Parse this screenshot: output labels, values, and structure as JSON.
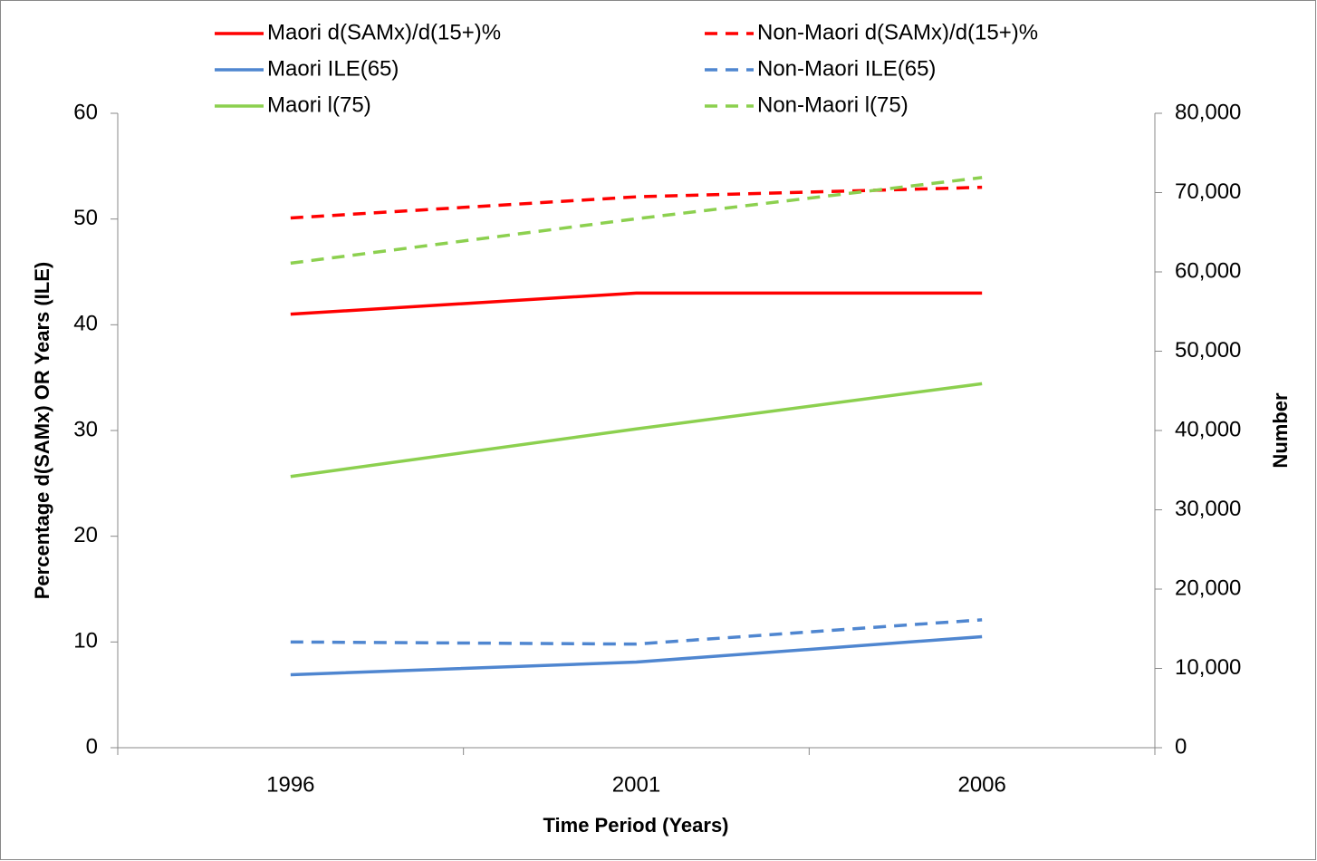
{
  "chart_data": {
    "type": "line",
    "x_label": "Time Period (Years)",
    "y_label": "Percentage d(SAMx) OR Years (ILE)",
    "y2_label": "Number",
    "categories": [
      "1996",
      "2001",
      "2006"
    ],
    "ylim": [
      0,
      60
    ],
    "yticks": [
      0,
      10,
      20,
      30,
      40,
      50,
      60
    ],
    "y2lim": [
      0,
      80000
    ],
    "y2ticks": [
      {
        "value": 0,
        "label": "0"
      },
      {
        "value": 10000,
        "label": "10,000"
      },
      {
        "value": 20000,
        "label": "20,000"
      },
      {
        "value": 30000,
        "label": "30,000"
      },
      {
        "value": 40000,
        "label": "40,000"
      },
      {
        "value": 50000,
        "label": "50,000"
      },
      {
        "value": 60000,
        "label": "60,000"
      },
      {
        "value": 70000,
        "label": "70,000"
      },
      {
        "value": 80000,
        "label": "80,000"
      }
    ],
    "legend": "top",
    "series": [
      {
        "name": "Maori d(SAMx)/d(15+)%",
        "color": "#ff0000",
        "dashed": false,
        "values": [
          41,
          43,
          43
        ]
      },
      {
        "name": "Non-Maori d(SAMx)/d(15+)%",
        "color": "#ff0000",
        "dashed": true,
        "values": [
          50.1,
          52.1,
          53
        ]
      },
      {
        "name": "Maori ILE(65)",
        "color": "#4f86d0",
        "dashed": false,
        "values": [
          6.9,
          8.1,
          10.5
        ]
      },
      {
        "name": "Non-Maori ILE(65)",
        "color": "#4f86d0",
        "dashed": true,
        "values": [
          10,
          9.8,
          12.1
        ]
      },
      {
        "name": "Maori l(75)",
        "color": "#8cd04f",
        "dashed": false,
        "axis": "y2",
        "values": [
          34200,
          40200,
          45900
        ]
      },
      {
        "name": "Non-Maori l(75)",
        "color": "#8cd04f",
        "dashed": true,
        "axis": "y2",
        "values": [
          61100,
          66700,
          71900
        ]
      }
    ]
  }
}
